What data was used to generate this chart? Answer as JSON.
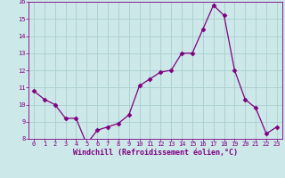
{
  "x": [
    0,
    1,
    2,
    3,
    4,
    5,
    6,
    7,
    8,
    9,
    10,
    11,
    12,
    13,
    14,
    15,
    16,
    17,
    18,
    19,
    20,
    21,
    22,
    23
  ],
  "y": [
    10.8,
    10.3,
    10.0,
    9.2,
    9.2,
    7.7,
    8.5,
    8.7,
    8.9,
    9.4,
    11.1,
    11.5,
    11.9,
    12.0,
    13.0,
    13.0,
    14.4,
    15.8,
    15.2,
    12.0,
    10.3,
    9.8,
    8.3,
    8.7
  ],
  "xlabel": "Windchill (Refroidissement éolien,°C)",
  "ylim": [
    8,
    16
  ],
  "yticks": [
    8,
    9,
    10,
    11,
    12,
    13,
    14,
    15,
    16
  ],
  "xticks": [
    0,
    1,
    2,
    3,
    4,
    5,
    6,
    7,
    8,
    9,
    10,
    11,
    12,
    13,
    14,
    15,
    16,
    17,
    18,
    19,
    20,
    21,
    22,
    23
  ],
  "line_color": "#800080",
  "marker": "D",
  "marker_size": 2.5,
  "background_color": "#cce8e8",
  "grid_color": "#aacece",
  "label_color": "#800080",
  "tick_color": "#800080",
  "tick_fontsize": 5.0,
  "xlabel_fontsize": 6.0,
  "xlim": [
    -0.5,
    23.5
  ]
}
